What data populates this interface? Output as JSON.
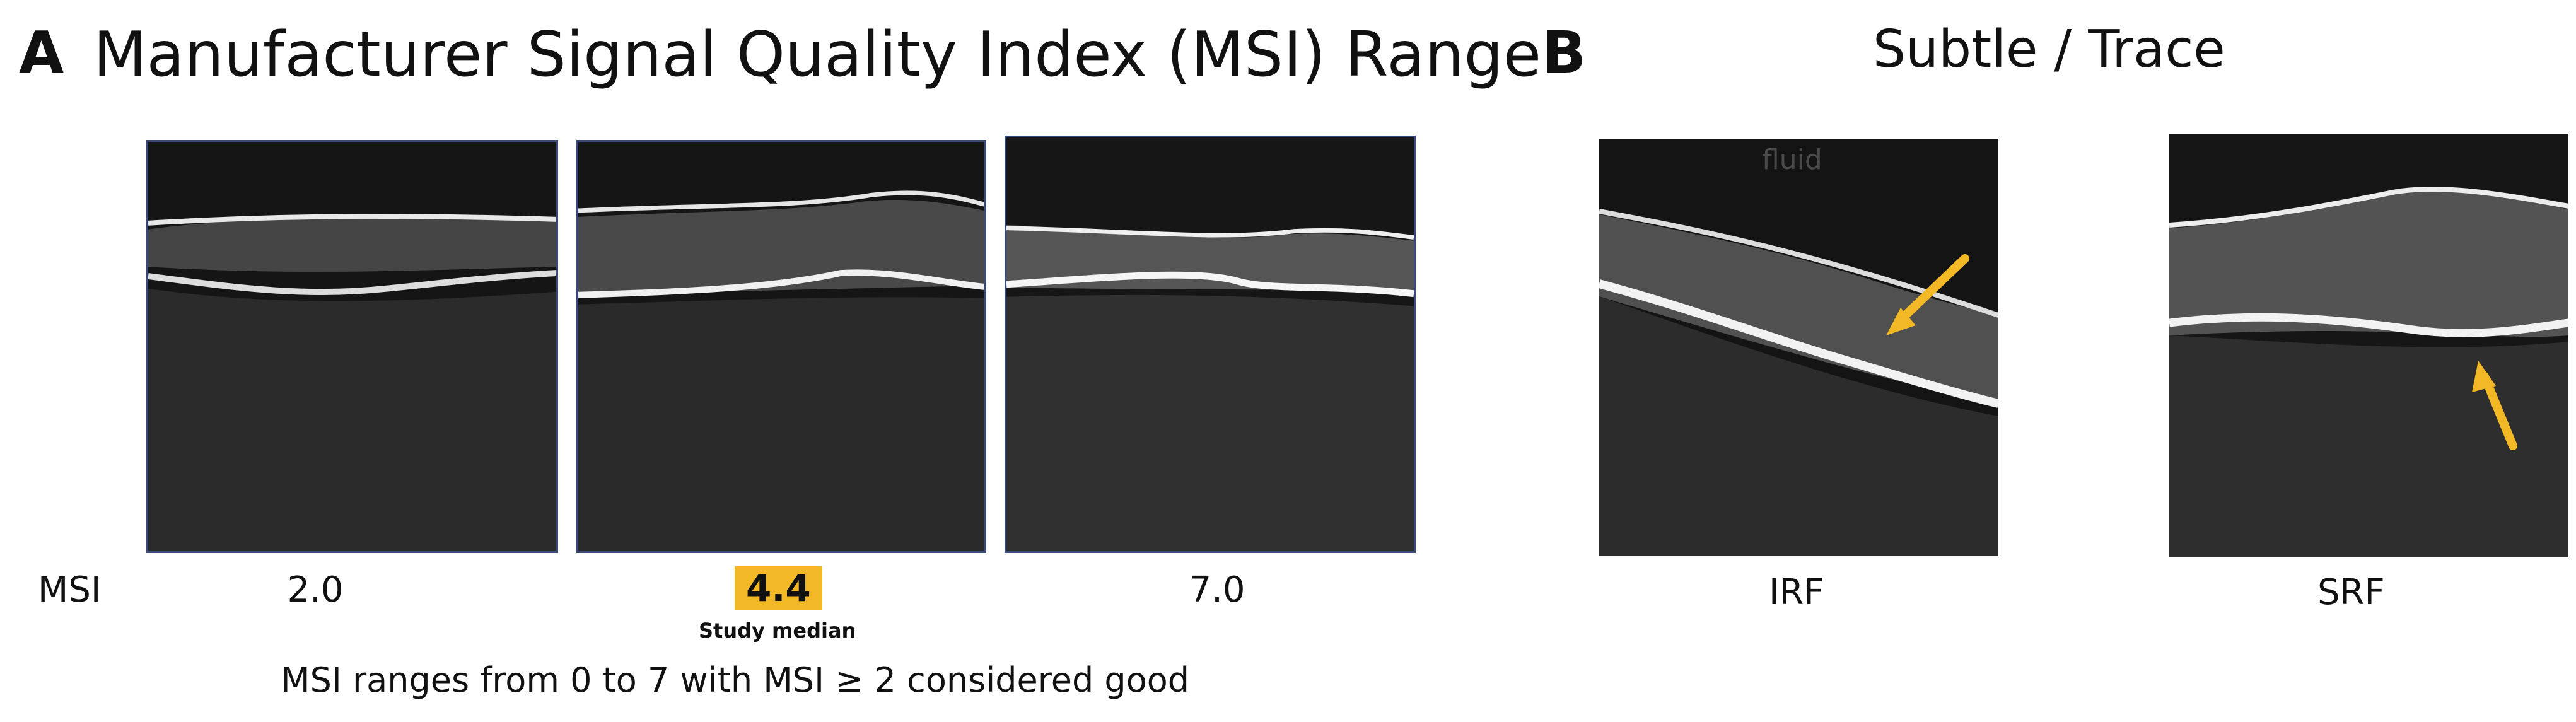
{
  "panel_a": {
    "letter": "A",
    "title": "Manufacturer Signal Quality Index (MSI) Range",
    "row_label": "MSI",
    "scans": [
      {
        "msi": "2.0"
      },
      {
        "msi": "4.4",
        "highlight": "#f2b825",
        "note": "Study median"
      },
      {
        "msi": "7.0"
      }
    ],
    "footer": "MSI ranges from 0 to 7 with MSI ≥ 2 considered good"
  },
  "panel_b": {
    "letter": "B",
    "title": "Subtle / Trace",
    "image_text": "fluid",
    "scans": [
      {
        "label": "IRF"
      },
      {
        "label": "SRF"
      }
    ],
    "arrow_color": "#f2b825"
  }
}
